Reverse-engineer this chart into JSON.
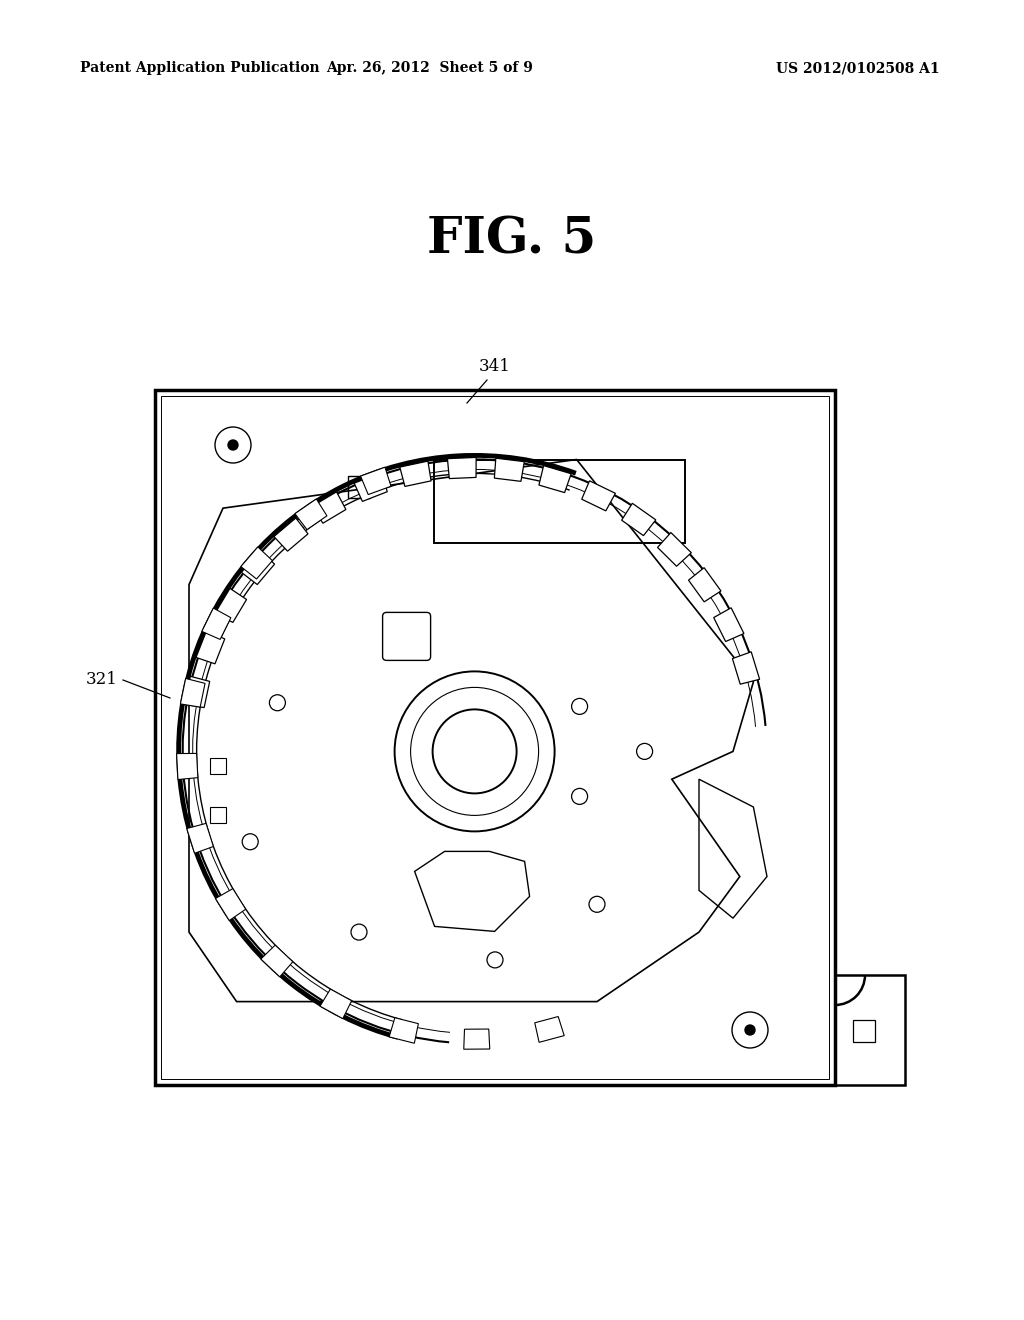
{
  "background_color": "#ffffff",
  "header_left": "Patent Application Publication",
  "header_center": "Apr. 26, 2012  Sheet 5 of 9",
  "header_right": "US 2012/0102508 A1",
  "fig_title": "FIG. 5",
  "label_341": "341",
  "label_321": "321",
  "line_color": "#000000"
}
